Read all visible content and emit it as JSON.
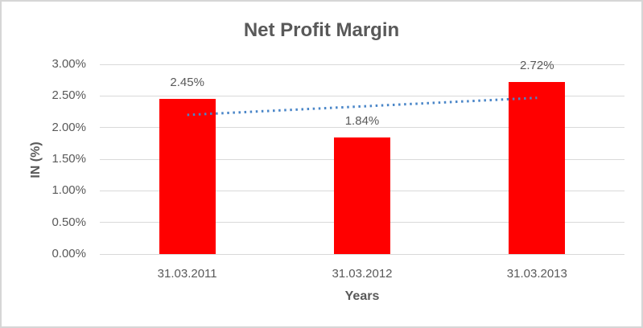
{
  "frame": {
    "background": "#FFFFFF",
    "border_color": "#D6D6D6"
  },
  "chart_data": {
    "type": "bar",
    "title": "Net Profit Margin",
    "xlabel": "Years",
    "ylabel": "IN (%)",
    "categories": [
      "31.03.2011",
      "31.03.2012",
      "31.03.2013"
    ],
    "values": [
      2.45,
      1.84,
      2.72
    ],
    "data_labels": [
      "2.45%",
      "1.84%",
      "2.72%"
    ],
    "ylim": [
      0,
      3
    ],
    "ytick_step": 0.5,
    "ytick_labels": [
      "0.00%",
      "0.50%",
      "1.00%",
      "1.50%",
      "2.00%",
      "2.50%",
      "3.00%"
    ],
    "grid": true,
    "legend": "none",
    "bar_color": "#FF0000",
    "trendline": {
      "style": "dotted",
      "color": "#4A86C8",
      "start_value": 2.2,
      "end_value": 2.47
    }
  },
  "styles": {
    "title_color": "#595959",
    "axis_text_color": "#595959",
    "gridline_color": "#D9D9D9"
  }
}
